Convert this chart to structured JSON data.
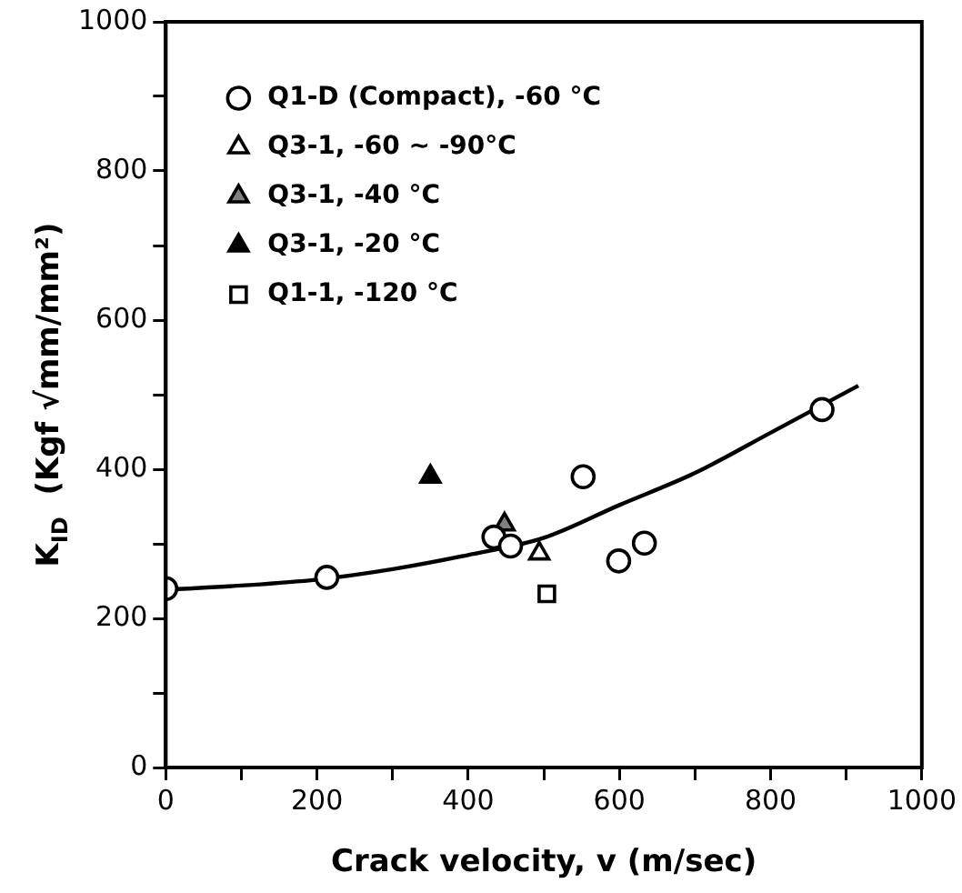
{
  "chart_data": {
    "type": "scatter",
    "xlabel": "Crack velocity, v (m/sec)",
    "ylabel": "K$_{ID}$  (Kgf √mm/mm²)",
    "xlim": [
      0,
      1000
    ],
    "ylim": [
      0,
      1000
    ],
    "xticks": [
      0,
      {
        "value": 100,
        "label": null
      },
      200,
      {
        "value": 300,
        "label": null
      },
      400,
      {
        "value": 500,
        "label": null
      },
      600,
      {
        "value": 700,
        "label": null
      },
      800,
      {
        "value": 900,
        "label": null
      },
      1000
    ],
    "yticks": [
      0,
      {
        "value": 100,
        "label": null
      },
      200,
      {
        "value": 300,
        "label": null
      },
      400,
      {
        "value": 500,
        "label": null
      },
      600,
      {
        "value": 700,
        "label": null
      },
      800,
      {
        "value": 900,
        "label": null
      },
      1000
    ],
    "grid": false,
    "legend": "top left",
    "series": [
      {
        "name": "Q1-D (Compact), -60 °C",
        "color": "#ffffff",
        "marker": "circle",
        "x": [
          0,
          213,
          434,
          456,
          552,
          599,
          633,
          868
        ],
        "values": [
          240,
          255,
          309,
          297,
          390,
          277,
          301,
          480
        ]
      },
      {
        "name": "Q3-1, -60 ~ -90°C",
        "color": "#ffffff",
        "marker": "triangle",
        "x": [
          494
        ],
        "values": [
          287
        ]
      },
      {
        "name": "Q3-1, -40 °C",
        "color": "#808080",
        "marker": "triangle",
        "x": [
          448
        ],
        "values": [
          326
        ]
      },
      {
        "name": "Q3-1, -20 °C",
        "color": "#000000",
        "marker": "triangle",
        "x": [
          350
        ],
        "values": [
          390
        ]
      },
      {
        "name": "Q1-1, -120 °C",
        "color": "#ffffff",
        "marker": "square",
        "x": [
          504
        ],
        "values": [
          233
        ]
      },
      {
        "type": "line",
        "color": "#000000",
        "marker": "none",
        "x": [
          10,
          100,
          200,
          300,
          400,
          500,
          600,
          700,
          800,
          916
        ],
        "values": [
          239,
          244,
          252,
          266,
          285,
          308,
          352,
          395,
          449,
          512
        ]
      }
    ]
  }
}
